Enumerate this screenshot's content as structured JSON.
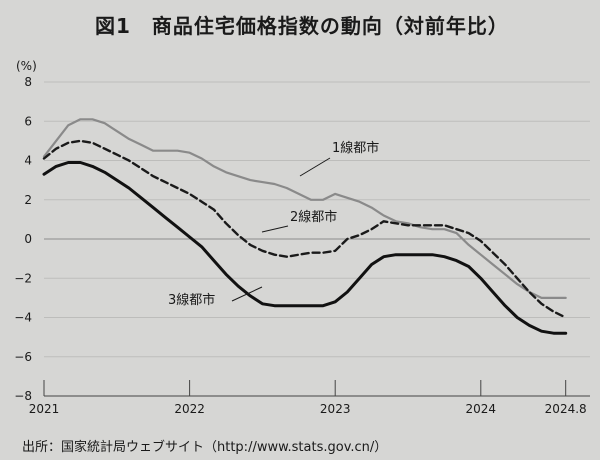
{
  "title": "図1　商品住宅価格指数の動向（対前年比）",
  "source": "出所：国家統計局ウェブサイト（http://www.stats.gov.cn/）",
  "chart_data": {
    "type": "line",
    "title": "図1　商品住宅価格指数の動向（対前年比）",
    "ylabel": "(%)",
    "ylim": [
      -8,
      8
    ],
    "yticks": [
      8,
      6,
      4,
      2,
      0,
      -2,
      -4,
      -6,
      -8
    ],
    "ytick_labels": [
      "8",
      "6",
      "4",
      "2",
      "0",
      "−2",
      "−4",
      "−6",
      "−8"
    ],
    "xlim": [
      2021.0,
      2024.75
    ],
    "xticks": [
      {
        "x": 2021.0,
        "label": "2021"
      },
      {
        "x": 2022.0,
        "label": "2022"
      },
      {
        "x": 2023.0,
        "label": "2023"
      },
      {
        "x": 2024.0,
        "label": "2024"
      },
      {
        "x": 2024.583,
        "label": "2024.8"
      }
    ],
    "grid": true,
    "series": [
      {
        "name": "1線都市",
        "style": "gray",
        "color": "#8a8a8a",
        "x": [
          2021.0,
          2021.083,
          2021.167,
          2021.25,
          2021.333,
          2021.417,
          2021.5,
          2021.583,
          2021.667,
          2021.75,
          2021.833,
          2021.917,
          2022.0,
          2022.083,
          2022.167,
          2022.25,
          2022.333,
          2022.417,
          2022.5,
          2022.583,
          2022.667,
          2022.75,
          2022.833,
          2022.917,
          2023.0,
          2023.083,
          2023.167,
          2023.25,
          2023.333,
          2023.417,
          2023.5,
          2023.583,
          2023.667,
          2023.75,
          2023.833,
          2023.917,
          2024.0,
          2024.083,
          2024.167,
          2024.25,
          2024.333,
          2024.417,
          2024.5,
          2024.583
        ],
        "values": [
          4.2,
          5.0,
          5.8,
          6.1,
          6.1,
          5.9,
          5.5,
          5.1,
          4.8,
          4.5,
          4.5,
          4.5,
          4.4,
          4.1,
          3.7,
          3.4,
          3.2,
          3.0,
          2.9,
          2.8,
          2.6,
          2.3,
          2.0,
          2.0,
          2.3,
          2.1,
          1.9,
          1.6,
          1.2,
          0.9,
          0.8,
          0.6,
          0.5,
          0.5,
          0.3,
          -0.3,
          -0.8,
          -1.3,
          -1.8,
          -2.3,
          -2.7,
          -3.0,
          -3.0,
          -3.0
        ]
      },
      {
        "name": "2線都市",
        "style": "dashed",
        "color": "#1a1a1a",
        "x": [
          2021.0,
          2021.083,
          2021.167,
          2021.25,
          2021.333,
          2021.417,
          2021.5,
          2021.583,
          2021.667,
          2021.75,
          2021.833,
          2021.917,
          2022.0,
          2022.083,
          2022.167,
          2022.25,
          2022.333,
          2022.417,
          2022.5,
          2022.583,
          2022.667,
          2022.75,
          2022.833,
          2022.917,
          2023.0,
          2023.083,
          2023.167,
          2023.25,
          2023.333,
          2023.417,
          2023.5,
          2023.583,
          2023.667,
          2023.75,
          2023.833,
          2023.917,
          2024.0,
          2024.083,
          2024.167,
          2024.25,
          2024.333,
          2024.417,
          2024.5,
          2024.583
        ],
        "values": [
          4.1,
          4.6,
          4.9,
          5.0,
          4.9,
          4.6,
          4.3,
          4.0,
          3.6,
          3.2,
          2.9,
          2.6,
          2.3,
          1.9,
          1.5,
          0.8,
          0.2,
          -0.3,
          -0.6,
          -0.8,
          -0.9,
          -0.8,
          -0.7,
          -0.7,
          -0.6,
          0.0,
          0.2,
          0.5,
          0.9,
          0.8,
          0.7,
          0.7,
          0.7,
          0.7,
          0.5,
          0.3,
          -0.1,
          -0.7,
          -1.3,
          -2.0,
          -2.7,
          -3.3,
          -3.7,
          -4.0
        ]
      },
      {
        "name": "3線都市",
        "style": "solid",
        "color": "#111111",
        "x": [
          2021.0,
          2021.083,
          2021.167,
          2021.25,
          2021.333,
          2021.417,
          2021.5,
          2021.583,
          2021.667,
          2021.75,
          2021.833,
          2021.917,
          2022.0,
          2022.083,
          2022.167,
          2022.25,
          2022.333,
          2022.417,
          2022.5,
          2022.583,
          2022.667,
          2022.75,
          2022.833,
          2022.917,
          2023.0,
          2023.083,
          2023.167,
          2023.25,
          2023.333,
          2023.417,
          2023.5,
          2023.583,
          2023.667,
          2023.75,
          2023.833,
          2023.917,
          2024.0,
          2024.083,
          2024.167,
          2024.25,
          2024.333,
          2024.417,
          2024.5,
          2024.583
        ],
        "values": [
          3.3,
          3.7,
          3.9,
          3.9,
          3.7,
          3.4,
          3.0,
          2.6,
          2.1,
          1.6,
          1.1,
          0.6,
          0.1,
          -0.4,
          -1.1,
          -1.8,
          -2.4,
          -2.9,
          -3.3,
          -3.4,
          -3.4,
          -3.4,
          -3.4,
          -3.4,
          -3.2,
          -2.7,
          -2.0,
          -1.3,
          -0.9,
          -0.8,
          -0.8,
          -0.8,
          -0.8,
          -0.9,
          -1.1,
          -1.4,
          -2.0,
          -2.7,
          -3.4,
          -4.0,
          -4.4,
          -4.7,
          -4.8,
          -4.8
        ]
      }
    ]
  }
}
